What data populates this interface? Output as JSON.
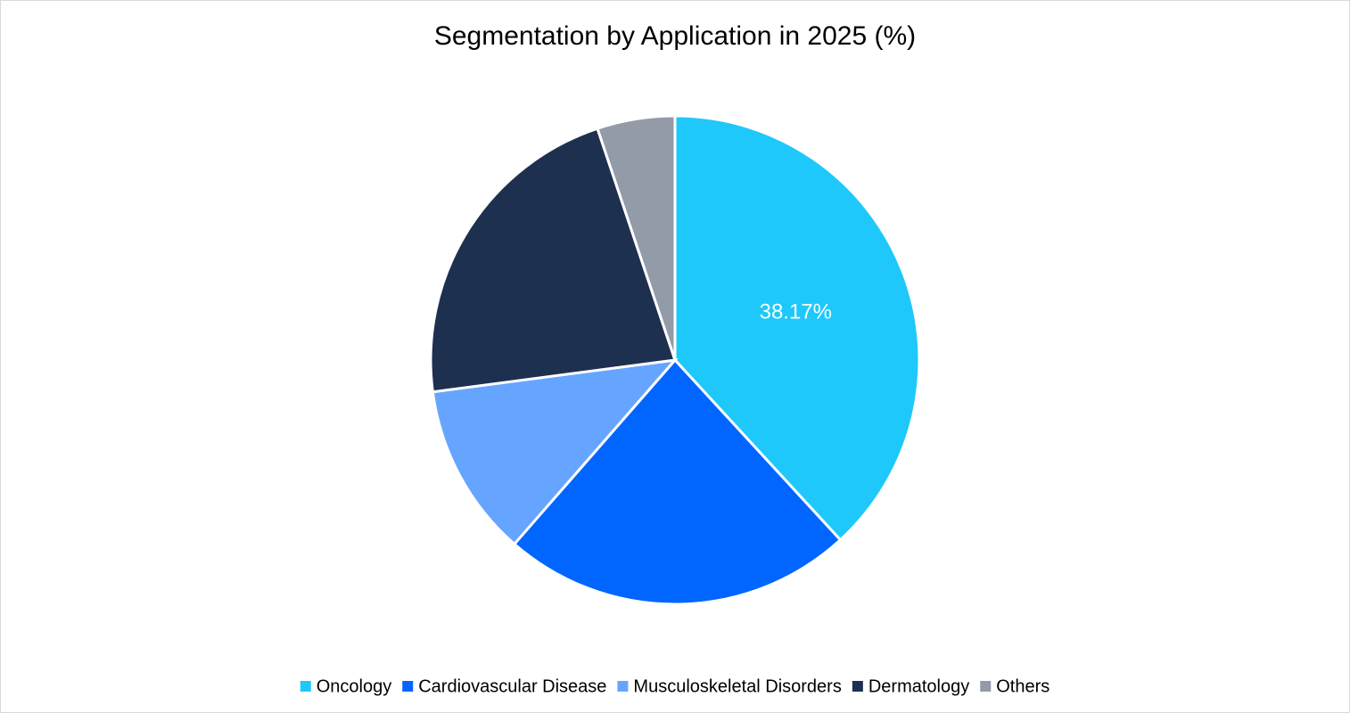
{
  "chart_data": {
    "type": "pie",
    "title": "Segmentation by Application in 2025 (%)",
    "categories": [
      "Oncology",
      "Cardiovascular Disease",
      "Musculoskeletal Disorders",
      "Dermatology",
      "Others"
    ],
    "values": [
      38.17,
      23.25,
      11.5,
      21.94,
      5.14
    ],
    "value_labels": [
      "38.17%",
      null,
      null,
      null,
      null
    ],
    "colors": [
      "#1ec8fa",
      "#0066ff",
      "#66a5ff",
      "#1e3050",
      "#939aa8"
    ],
    "legend": "bottom"
  }
}
